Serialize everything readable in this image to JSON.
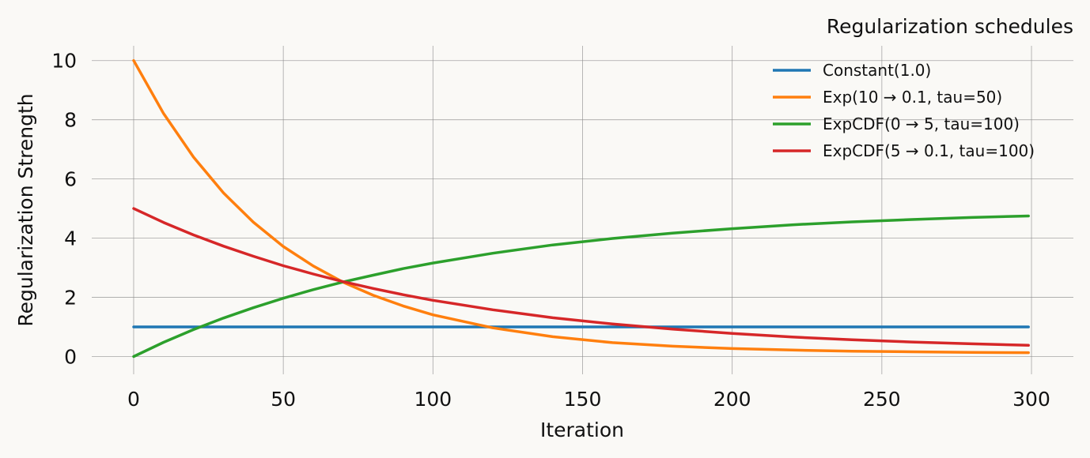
{
  "chart_data": {
    "type": "line",
    "title": "Regularization schedules",
    "xlabel": "Iteration",
    "ylabel": "Regularization Strength",
    "xlim": [
      -14,
      314
    ],
    "ylim": [
      -0.6,
      10.5
    ],
    "xticks": [
      0,
      50,
      100,
      150,
      200,
      250,
      300
    ],
    "yticks": [
      0,
      2,
      4,
      6,
      8,
      10
    ],
    "grid": true,
    "legend_position": "top-right",
    "series": [
      {
        "name": "Constant(1.0)",
        "color": "#1f77b4",
        "x": [
          0,
          20,
          40,
          60,
          80,
          100,
          120,
          140,
          160,
          180,
          200,
          220,
          240,
          260,
          280,
          299
        ],
        "y": [
          1.0,
          1.0,
          1.0,
          1.0,
          1.0,
          1.0,
          1.0,
          1.0,
          1.0,
          1.0,
          1.0,
          1.0,
          1.0,
          1.0,
          1.0,
          1.0
        ]
      },
      {
        "name": "Exp(10 → 0.1, tau=50)",
        "color": "#ff7f0e",
        "x": [
          0,
          10,
          20,
          30,
          40,
          50,
          60,
          70,
          80,
          90,
          100,
          120,
          140,
          160,
          180,
          200,
          220,
          240,
          260,
          280,
          299
        ],
        "y": [
          10.0,
          8.21,
          6.74,
          5.53,
          4.54,
          3.72,
          3.06,
          2.51,
          2.07,
          1.71,
          1.41,
          0.97,
          0.67,
          0.47,
          0.35,
          0.27,
          0.22,
          0.18,
          0.16,
          0.14,
          0.13
        ]
      },
      {
        "name": "ExpCDF(0 → 5, tau=100)",
        "color": "#2ca02c",
        "x": [
          0,
          10,
          20,
          30,
          40,
          50,
          60,
          70,
          80,
          90,
          100,
          120,
          140,
          160,
          180,
          200,
          220,
          240,
          260,
          280,
          299
        ],
        "y": [
          0.0,
          0.48,
          0.91,
          1.3,
          1.65,
          1.97,
          2.26,
          2.52,
          2.75,
          2.97,
          3.16,
          3.49,
          3.77,
          3.99,
          4.17,
          4.32,
          4.45,
          4.55,
          4.63,
          4.7,
          4.75
        ]
      },
      {
        "name": "ExpCDF(5 → 0.1, tau=100)",
        "color": "#d62728",
        "x": [
          0,
          10,
          20,
          30,
          40,
          50,
          60,
          70,
          80,
          90,
          100,
          120,
          140,
          160,
          180,
          200,
          220,
          240,
          260,
          280,
          299
        ],
        "y": [
          5.0,
          4.53,
          4.11,
          3.73,
          3.39,
          3.07,
          2.79,
          2.53,
          2.3,
          2.09,
          1.9,
          1.58,
          1.31,
          1.1,
          0.93,
          0.78,
          0.66,
          0.57,
          0.49,
          0.43,
          0.38
        ]
      }
    ]
  }
}
